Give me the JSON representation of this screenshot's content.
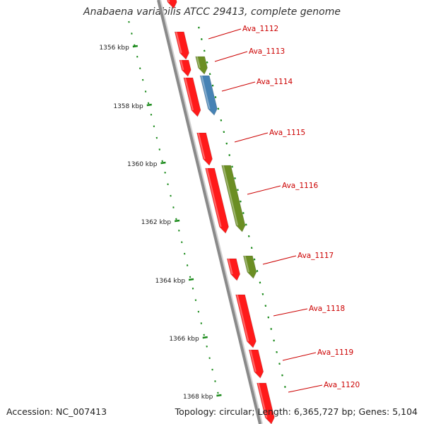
{
  "title": "Anabaena variabilis ATCC 29413, complete genome",
  "accession": "Accession: NC_007413",
  "summary": "Topology: circular; Length: 6,365,727 bp; Genes: 5,104",
  "colors": {
    "backbone": "#8a8a8a",
    "tick": "#1a8a1a",
    "scale_label": "#222222",
    "gene_label": "#cc0000",
    "leader_line": "#cc0000",
    "gene_red": "#ff1a1a",
    "gene_green": "#6b8e23",
    "gene_blue": "#4682b4"
  },
  "scale": {
    "ticks": [
      {
        "label": "1356 kbp"
      },
      {
        "label": "1358 kbp"
      },
      {
        "label": "1360 kbp"
      },
      {
        "label": "1362 kbp"
      },
      {
        "label": "1364 kbp"
      },
      {
        "label": "1366 kbp"
      },
      {
        "label": "1368 kbp"
      }
    ]
  },
  "genes": [
    {
      "label": "Ava_1112"
    },
    {
      "label": "Ava_1113"
    },
    {
      "label": "Ava_1114"
    },
    {
      "label": "Ava_1115"
    },
    {
      "label": "Ava_1116"
    },
    {
      "label": "Ava_1117"
    },
    {
      "label": "Ava_1118"
    },
    {
      "label": "Ava_1119"
    },
    {
      "label": "Ava_1120"
    }
  ]
}
